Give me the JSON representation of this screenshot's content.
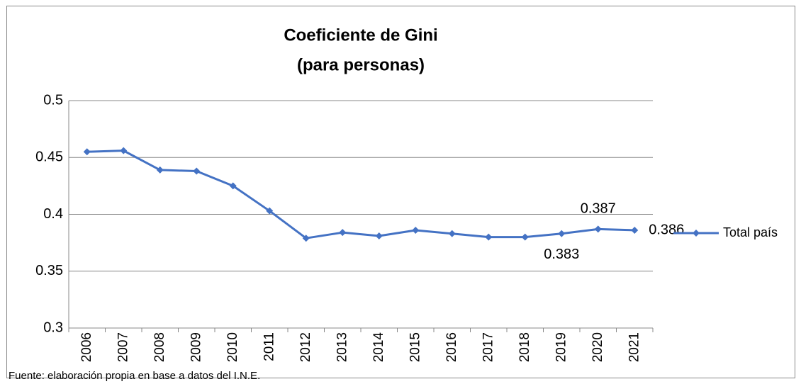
{
  "chart_data": {
    "type": "line",
    "title": [
      "Coeficiente de Gini",
      "(para personas)"
    ],
    "categories": [
      "2006",
      "2007",
      "2008",
      "2009",
      "2010",
      "2011",
      "2012",
      "2013",
      "2014",
      "2015",
      "2016",
      "2017",
      "2018",
      "2019",
      "2020",
      "2021"
    ],
    "series": [
      {
        "name": "Total país",
        "color": "#4472c4",
        "values": [
          0.455,
          0.456,
          0.439,
          0.438,
          0.425,
          0.403,
          0.379,
          0.384,
          0.381,
          0.386,
          0.383,
          0.38,
          0.38,
          0.383,
          0.387,
          0.386
        ],
        "value_labels": [
          null,
          null,
          null,
          null,
          null,
          null,
          null,
          null,
          null,
          null,
          null,
          null,
          null,
          "0.383",
          "0.387",
          "0.386"
        ]
      }
    ],
    "ylim": [
      0.3,
      0.5
    ],
    "yticks": [
      0.3,
      0.35,
      0.4,
      0.45,
      0.5
    ],
    "grid": true,
    "legend": "right",
    "note": "Fuente: elaboración propia en base a datos del I.N.E."
  }
}
